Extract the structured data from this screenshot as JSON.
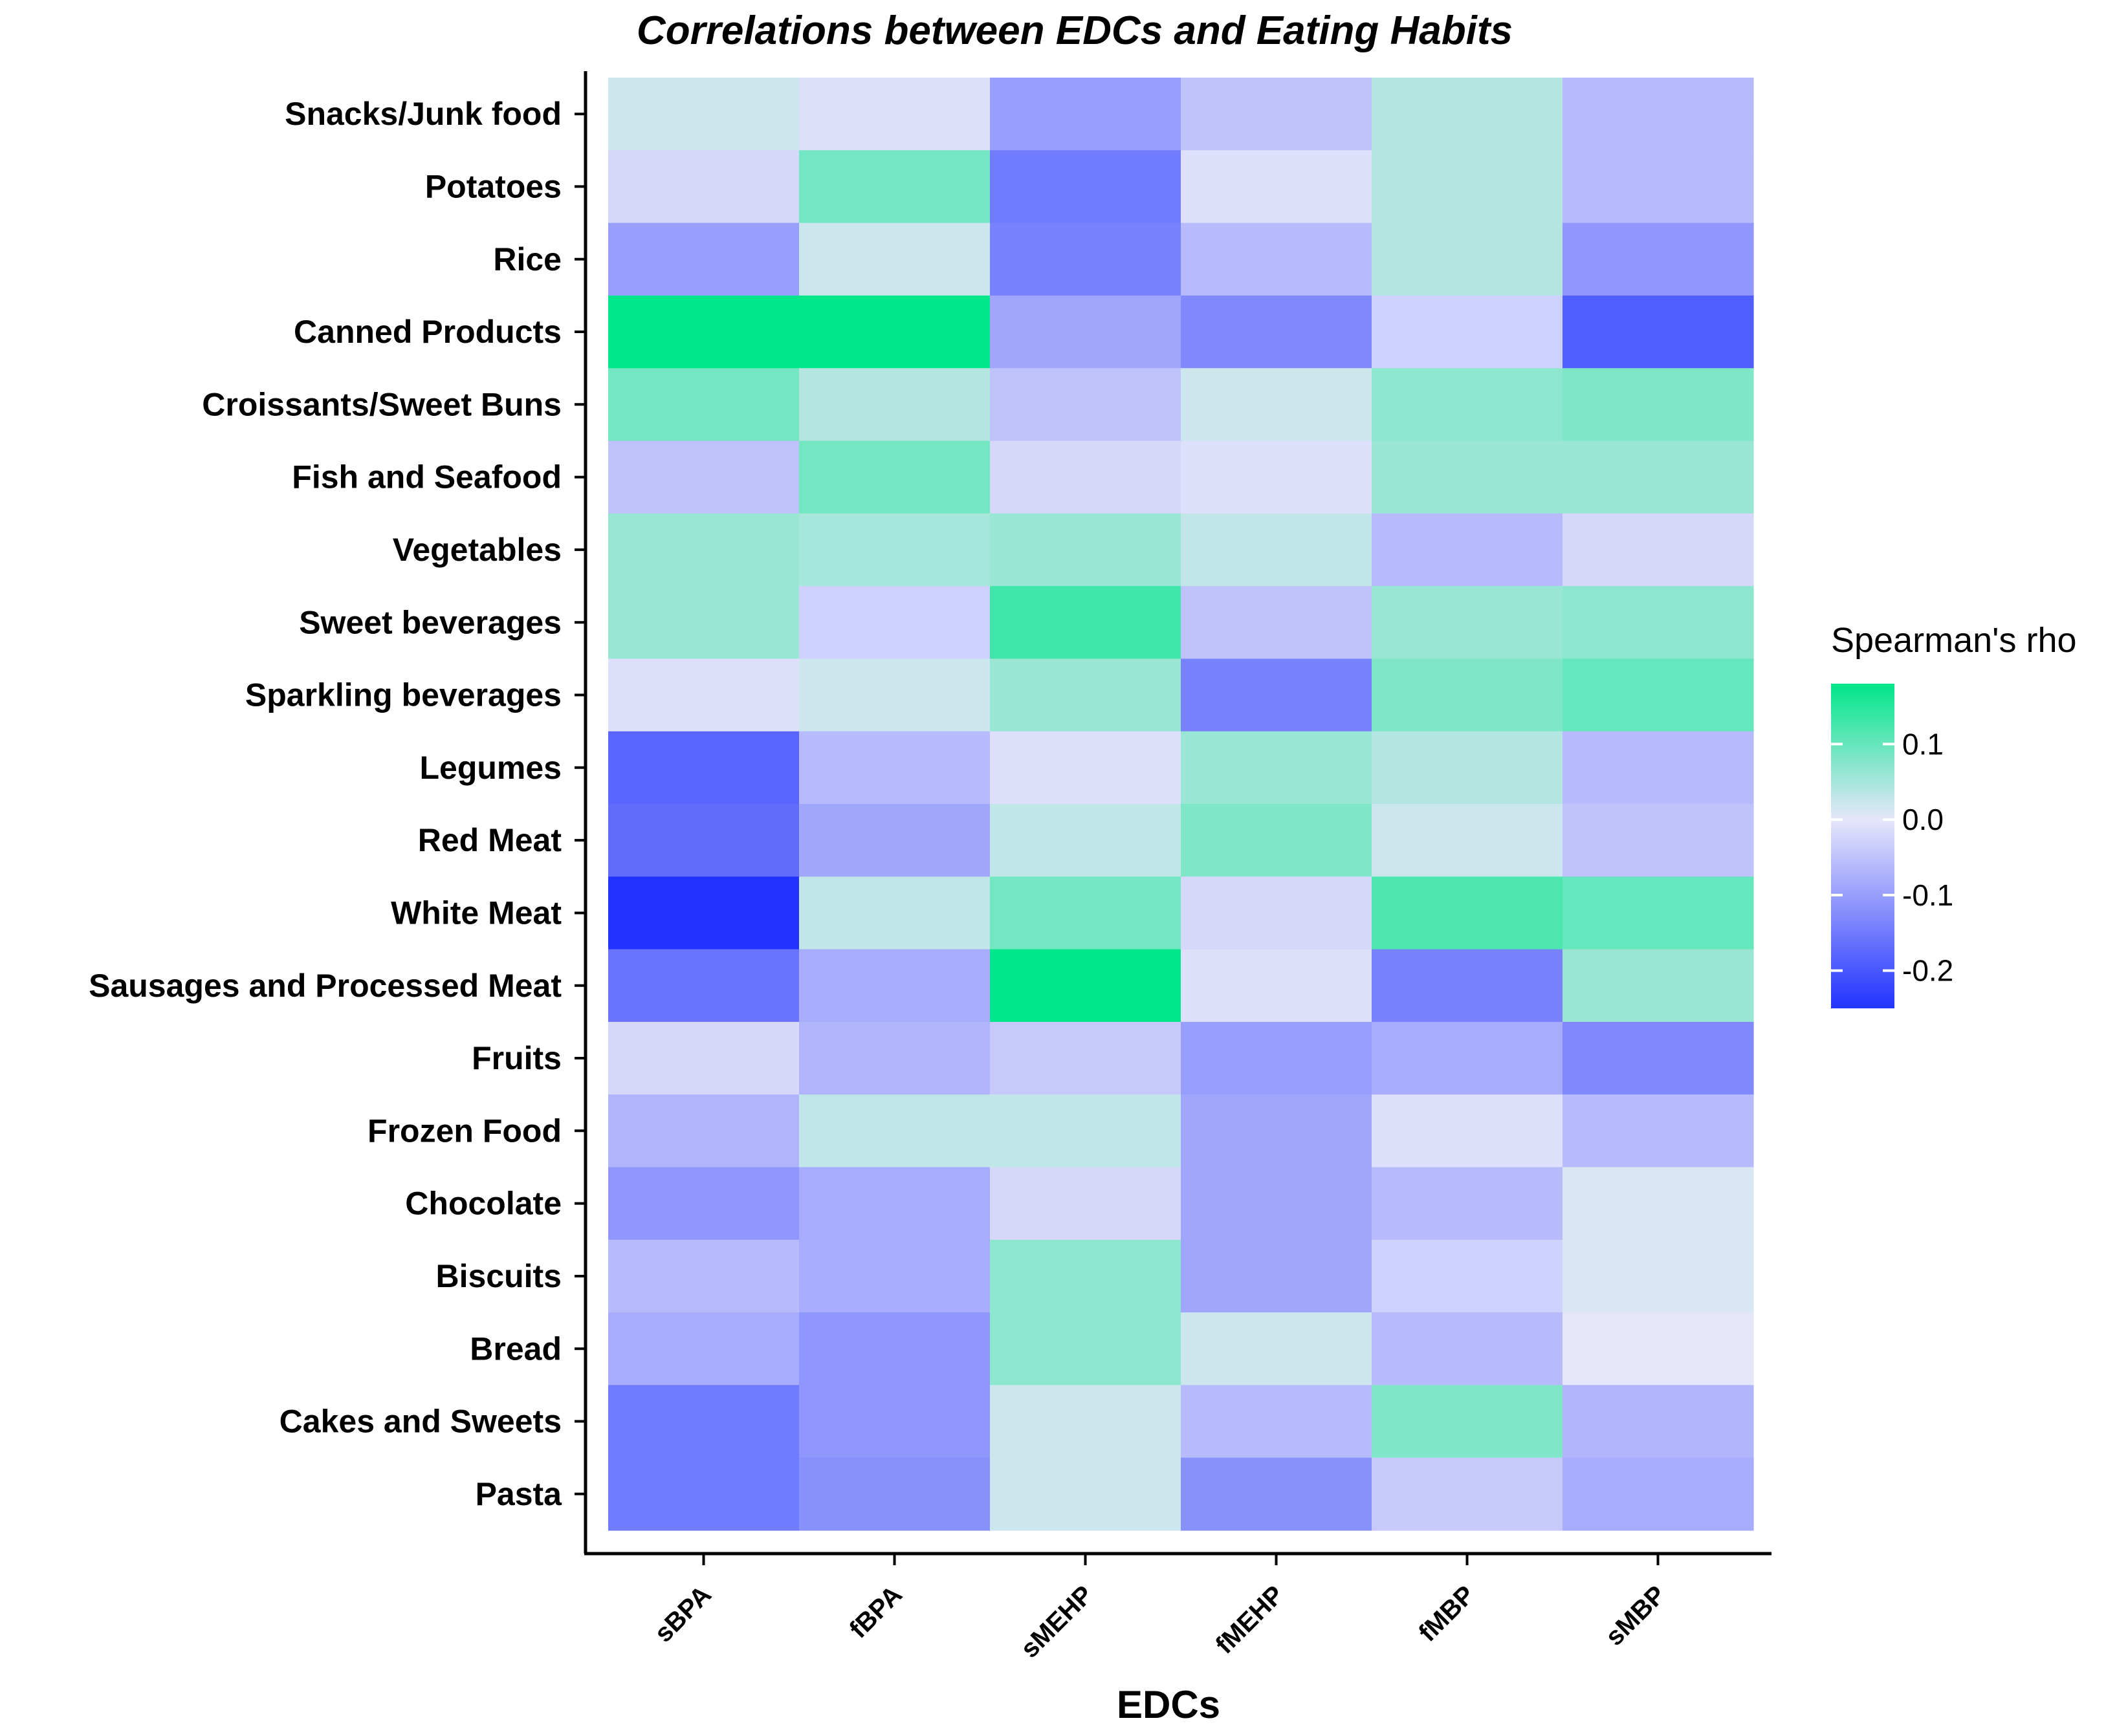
{
  "chart_data": {
    "type": "heatmap",
    "title": "Correlations between EDCs and Eating Habits",
    "xlabel": "EDCs",
    "ylabel": "",
    "x_categories": [
      "sBPA",
      "fBPA",
      "sMEHP",
      "fMEHP",
      "fMBP",
      "sMBP"
    ],
    "y_categories": [
      "Snacks/Junk food",
      "Potatoes",
      "Rice",
      "Canned Products",
      "Croissants/Sweet Buns",
      "Fish and Seafood",
      "Vegetables",
      "Sweet beverages",
      "Sparkling beverages",
      "Legumes",
      "Red Meat",
      "White Meat",
      "Sausages and Processed Meat",
      "Fruits",
      "Frozen Food",
      "Chocolate",
      "Biscuits",
      "Bread",
      "Cakes and Sweets",
      "Pasta"
    ],
    "values": [
      [
        0.02,
        -0.01,
        -0.1,
        -0.05,
        0.04,
        -0.06
      ],
      [
        -0.02,
        0.09,
        -0.15,
        -0.01,
        0.04,
        -0.06
      ],
      [
        -0.1,
        0.02,
        -0.14,
        -0.06,
        0.04,
        -0.11
      ],
      [
        0.18,
        0.18,
        -0.09,
        -0.13,
        -0.03,
        -0.19
      ],
      [
        0.09,
        0.04,
        -0.05,
        0.02,
        0.07,
        0.08
      ],
      [
        -0.05,
        0.09,
        -0.02,
        -0.01,
        0.06,
        0.06
      ],
      [
        0.06,
        0.05,
        0.06,
        0.03,
        -0.06,
        -0.02
      ],
      [
        0.06,
        -0.03,
        0.13,
        -0.05,
        0.06,
        0.07
      ],
      [
        -0.01,
        0.02,
        0.06,
        -0.14,
        0.08,
        0.1
      ],
      [
        -0.18,
        -0.06,
        -0.01,
        0.06,
        0.04,
        -0.06
      ],
      [
        -0.17,
        -0.09,
        0.03,
        0.08,
        0.02,
        -0.05
      ],
      [
        -0.25,
        0.03,
        0.09,
        -0.02,
        0.12,
        0.1
      ],
      [
        -0.16,
        -0.08,
        0.18,
        -0.01,
        -0.14,
        0.06
      ],
      [
        -0.02,
        -0.07,
        -0.04,
        -0.1,
        -0.08,
        -0.13
      ],
      [
        -0.07,
        0.03,
        0.03,
        -0.09,
        -0.01,
        -0.06
      ],
      [
        -0.11,
        -0.08,
        -0.02,
        -0.09,
        -0.06,
        0.01
      ],
      [
        -0.06,
        -0.08,
        0.07,
        -0.09,
        -0.03,
        0.01
      ],
      [
        -0.08,
        -0.11,
        0.07,
        0.02,
        -0.06,
        0.0
      ],
      [
        -0.15,
        -0.11,
        0.02,
        -0.06,
        0.08,
        -0.07
      ],
      [
        -0.15,
        -0.12,
        0.02,
        -0.12,
        -0.04,
        -0.08
      ]
    ],
    "legend": {
      "title": "Spearman's rho",
      "ticks": [
        0.1,
        0.0,
        -0.1,
        -0.2
      ],
      "tick_labels": [
        "0.1",
        "0.0",
        "-0.1",
        "-0.2"
      ],
      "range": [
        -0.25,
        0.18
      ],
      "placement": "right"
    },
    "colors": {
      "low": "#2233ff",
      "mid": "#e6e6fa",
      "high": "#00e68a"
    }
  }
}
